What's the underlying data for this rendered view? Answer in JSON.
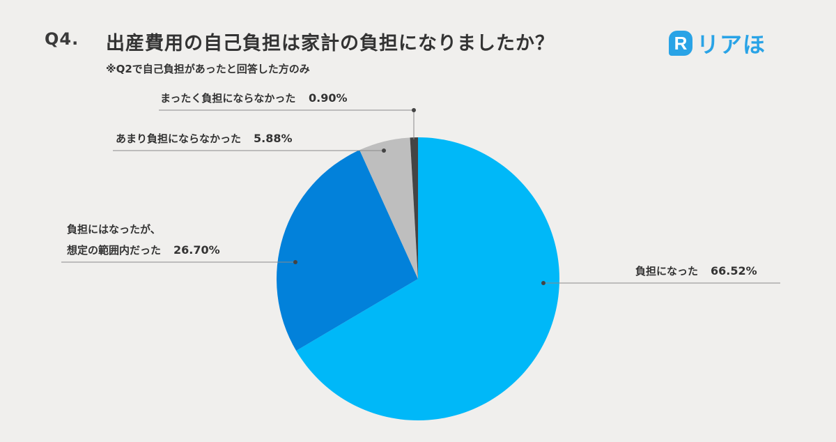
{
  "header": {
    "question_number": "Q4.",
    "title": "出産費用の自己負担は家計の負担になりましたか？",
    "subtitle": "※Q2で自己負担があったと回答した方のみ"
  },
  "logo": {
    "mark": "R",
    "text": "リアほ",
    "color": "#29a3e6"
  },
  "chart_data": {
    "type": "pie",
    "start_angle_deg": 0,
    "direction": "clockwise",
    "slices": [
      {
        "label": "負担になった",
        "value": 66.52,
        "value_label": "66.52%",
        "color": "#00b8f8"
      },
      {
        "label": "負担にはなったが、想定の範囲内だった",
        "label_lines": [
          "負担にはなったが、",
          "想定の範囲内だった"
        ],
        "value": 26.7,
        "value_label": "26.70%",
        "color": "#0281da"
      },
      {
        "label": "あまり負担にならなかった",
        "value": 5.88,
        "value_label": "5.88%",
        "color": "#bebebe"
      },
      {
        "label": "まったく負担にならなかった",
        "value": 0.9,
        "value_label": "0.90%",
        "color": "#444444"
      }
    ]
  }
}
